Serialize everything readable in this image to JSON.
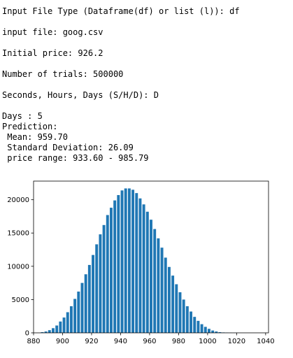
{
  "console": {
    "prompt_type": "Input File Type (Dataframe(df) or list (l)): df",
    "input_file": "input file: goog.csv",
    "initial_price": "Initial price: 926.2",
    "trials": "Number of trials: 500000",
    "unit_prompt": "Seconds, Hours, Days (S/H/D): D",
    "days": "Days : 5",
    "prediction": "Prediction:",
    "mean": " Mean: 959.70",
    "std": " Standard Deviation: 26.09",
    "range": " price range: 933.60 - 985.79"
  },
  "chart_data": {
    "type": "bar",
    "bar_color": "#1f77b4",
    "xlim": [
      880,
      1042
    ],
    "ylim": [
      0,
      22800
    ],
    "x_ticks": [
      880,
      900,
      920,
      940,
      960,
      980,
      1000,
      1020,
      1040
    ],
    "y_ticks": [
      0,
      5000,
      10000,
      15000,
      20000
    ],
    "x": [
      886,
      888.5,
      891,
      893.5,
      896,
      898.5,
      901,
      903.5,
      906,
      908.5,
      911,
      913.5,
      916,
      918.5,
      921,
      923.5,
      926,
      928.5,
      931,
      933.5,
      936,
      938.5,
      941,
      943.5,
      946,
      948.5,
      951,
      953.5,
      956,
      958.5,
      961,
      963.5,
      966,
      968.5,
      971,
      973.5,
      976,
      978.5,
      981,
      983.5,
      986,
      988.5,
      991,
      993.5,
      996,
      998.5,
      1001,
      1003.5,
      1006,
      1008.5,
      1011,
      1013.5,
      1016,
      1018.5,
      1021,
      1023.5,
      1026,
      1028.5,
      1031,
      1033.5
    ],
    "values": [
      100,
      200,
      400,
      700,
      1100,
      1700,
      2300,
      3100,
      4000,
      5100,
      6200,
      7500,
      8800,
      10200,
      11700,
      13300,
      14800,
      16200,
      17700,
      18800,
      19900,
      20700,
      21400,
      21700,
      21700,
      21500,
      21000,
      20200,
      19300,
      18200,
      17000,
      15600,
      14200,
      12800,
      11300,
      9900,
      8600,
      7300,
      6100,
      5000,
      4000,
      3200,
      2400,
      1800,
      1300,
      900,
      600,
      350,
      200,
      100,
      60,
      30,
      20,
      10,
      5,
      3,
      2,
      1,
      1,
      1
    ]
  }
}
